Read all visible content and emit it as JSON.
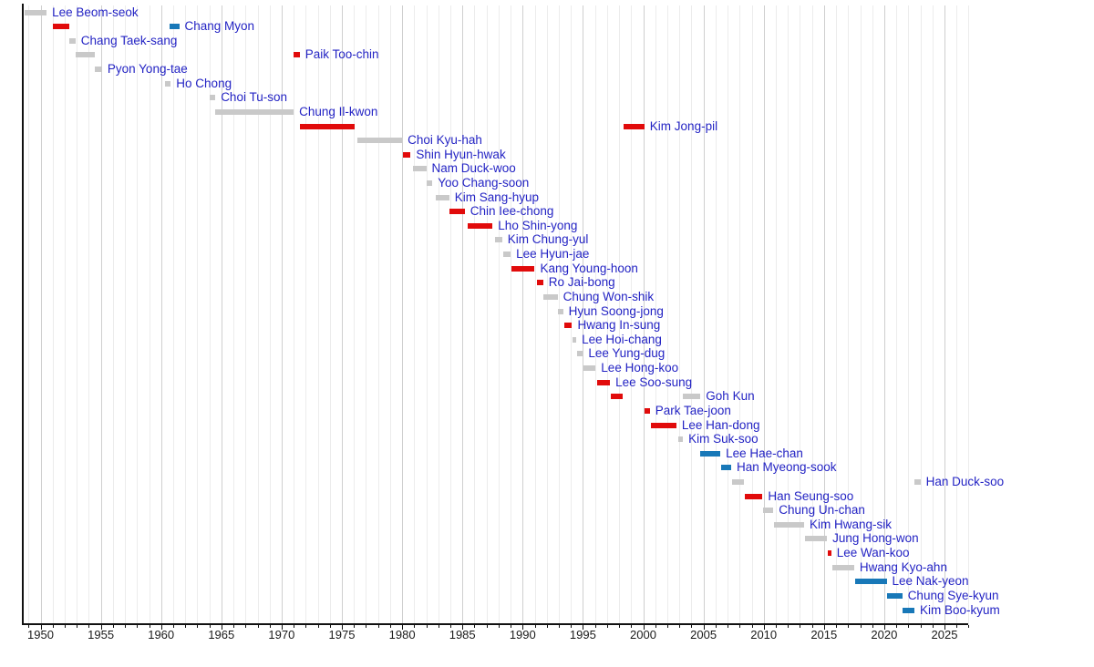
{
  "chart_data": {
    "type": "gantt-timeline",
    "title": "",
    "x_axis": {
      "axis_start_year": 1948.5,
      "axis_end_year": 2027,
      "major_tick_years": [
        1950,
        1955,
        1960,
        1965,
        1970,
        1975,
        1980,
        1985,
        1990,
        1995,
        2000,
        2005,
        2010,
        2015,
        2020,
        2025
      ],
      "major_tick_labels": [
        "1950",
        "1955",
        "1960",
        "1965",
        "1970",
        "1975",
        "1980",
        "1985",
        "1990",
        "1995",
        "2000",
        "2005",
        "2010",
        "2015",
        "2020",
        "2025"
      ],
      "minor_tick_interval_years": 1,
      "gridlines": "vertical, every year, 5-year lines darker"
    },
    "legend_position": "none",
    "colors": {
      "gray": "#c9c9c9",
      "red": "#e10b0b",
      "blue": "#1878b8",
      "label_text": "#2424c4",
      "axis": "#111111",
      "tick_label": "#1a1a1a",
      "gridline_minor": "#ececec",
      "gridline_major": "#cfcfcf"
    },
    "rows": [
      {
        "name": "Lee Beom-seok",
        "terms": [
          {
            "start": 1948.7,
            "end": 1950.5,
            "color": "gray"
          }
        ]
      },
      {
        "name": "Chang Myon",
        "terms": [
          {
            "start": 1951.0,
            "end": 1952.4,
            "color": "red"
          },
          {
            "start": 1960.7,
            "end": 1961.5,
            "color": "blue"
          }
        ]
      },
      {
        "name": "Chang Taek-sang",
        "terms": [
          {
            "start": 1952.4,
            "end": 1952.9,
            "color": "gray"
          }
        ]
      },
      {
        "name": "Paik Too-chin",
        "terms": [
          {
            "start": 1952.9,
            "end": 1954.5,
            "color": "gray"
          },
          {
            "start": 1971.0,
            "end": 1971.5,
            "color": "red"
          }
        ]
      },
      {
        "name": "Pyon Yong-tae",
        "terms": [
          {
            "start": 1954.5,
            "end": 1955.1,
            "color": "gray"
          }
        ]
      },
      {
        "name": "Ho Chong",
        "terms": [
          {
            "start": 1960.3,
            "end": 1960.8,
            "color": "gray"
          }
        ]
      },
      {
        "name": "Choi Tu-son",
        "terms": [
          {
            "start": 1964.0,
            "end": 1964.5,
            "color": "gray"
          }
        ]
      },
      {
        "name": "Chung Il-kwon",
        "terms": [
          {
            "start": 1964.5,
            "end": 1971.0,
            "color": "gray"
          }
        ]
      },
      {
        "name": "Kim Jong-pil",
        "terms": [
          {
            "start": 1971.5,
            "end": 1976.1,
            "color": "red"
          },
          {
            "start": 1998.4,
            "end": 2000.1,
            "color": "red"
          }
        ]
      },
      {
        "name": "Choi Kyu-hah",
        "terms": [
          {
            "start": 1976.3,
            "end": 1980.0,
            "color": "gray"
          }
        ]
      },
      {
        "name": "Shin Hyun-hwak",
        "terms": [
          {
            "start": 1980.1,
            "end": 1980.7,
            "color": "red"
          }
        ]
      },
      {
        "name": "Nam Duck-woo",
        "terms": [
          {
            "start": 1980.9,
            "end": 1982.0,
            "color": "gray"
          }
        ]
      },
      {
        "name": "Yoo Chang-soon",
        "terms": [
          {
            "start": 1982.0,
            "end": 1982.5,
            "color": "gray"
          }
        ]
      },
      {
        "name": "Kim Sang-hyup",
        "terms": [
          {
            "start": 1982.8,
            "end": 1983.9,
            "color": "gray"
          }
        ]
      },
      {
        "name": "Chin Iee-chong",
        "terms": [
          {
            "start": 1983.9,
            "end": 1985.2,
            "color": "red"
          }
        ]
      },
      {
        "name": "Lho Shin-yong",
        "terms": [
          {
            "start": 1985.4,
            "end": 1987.5,
            "color": "red"
          }
        ]
      },
      {
        "name": "Kim Chung-yul",
        "terms": [
          {
            "start": 1987.7,
            "end": 1988.3,
            "color": "gray"
          }
        ]
      },
      {
        "name": "Lee Hyun-jae",
        "terms": [
          {
            "start": 1988.4,
            "end": 1989.0,
            "color": "gray"
          }
        ]
      },
      {
        "name": "Kang Young-hoon",
        "terms": [
          {
            "start": 1989.1,
            "end": 1991.0,
            "color": "red"
          }
        ]
      },
      {
        "name": "Ro Jai-bong",
        "terms": [
          {
            "start": 1991.2,
            "end": 1991.7,
            "color": "red"
          }
        ]
      },
      {
        "name": "Chung Won-shik",
        "terms": [
          {
            "start": 1991.7,
            "end": 1992.9,
            "color": "gray"
          }
        ]
      },
      {
        "name": "Hyun Soong-jong",
        "terms": [
          {
            "start": 1992.95,
            "end": 1993.35,
            "color": "gray"
          }
        ]
      },
      {
        "name": "Hwang In-sung",
        "terms": [
          {
            "start": 1993.45,
            "end": 1994.1,
            "color": "red"
          }
        ]
      },
      {
        "name": "Lee Hoi-chang",
        "terms": [
          {
            "start": 1994.15,
            "end": 1994.45,
            "color": "gray"
          }
        ]
      },
      {
        "name": "Lee Yung-dug",
        "terms": [
          {
            "start": 1994.5,
            "end": 1995.0,
            "color": "gray"
          }
        ]
      },
      {
        "name": "Lee Hong-koo",
        "terms": [
          {
            "start": 1995.05,
            "end": 1996.05,
            "color": "gray"
          }
        ]
      },
      {
        "name": "Lee Soo-sung",
        "terms": [
          {
            "start": 1996.15,
            "end": 1997.25,
            "color": "red"
          }
        ]
      },
      {
        "name": "Goh Kun",
        "terms": [
          {
            "start": 1997.3,
            "end": 1998.3,
            "color": "red"
          },
          {
            "start": 2003.3,
            "end": 2004.75,
            "color": "gray"
          }
        ]
      },
      {
        "name": "Park Tae-joon",
        "terms": [
          {
            "start": 2000.1,
            "end": 2000.55,
            "color": "red"
          }
        ]
      },
      {
        "name": "Lee Han-dong",
        "terms": [
          {
            "start": 2000.65,
            "end": 2002.75,
            "color": "red"
          }
        ]
      },
      {
        "name": "Kim Suk-soo",
        "terms": [
          {
            "start": 2002.9,
            "end": 2003.3,
            "color": "gray"
          }
        ]
      },
      {
        "name": "Lee Hae-chan",
        "terms": [
          {
            "start": 2004.75,
            "end": 2006.4,
            "color": "blue"
          }
        ]
      },
      {
        "name": "Han Myeong-sook",
        "terms": [
          {
            "start": 2006.5,
            "end": 2007.3,
            "color": "blue"
          }
        ]
      },
      {
        "name": "Han Duck-soo",
        "terms": [
          {
            "start": 2007.4,
            "end": 2008.35,
            "color": "gray"
          },
          {
            "start": 2022.5,
            "end": 2023.0,
            "color": "gray"
          }
        ]
      },
      {
        "name": "Han Seung-soo",
        "terms": [
          {
            "start": 2008.4,
            "end": 2009.9,
            "color": "red"
          }
        ]
      },
      {
        "name": "Chung Un-chan",
        "terms": [
          {
            "start": 2009.95,
            "end": 2010.8,
            "color": "gray"
          }
        ]
      },
      {
        "name": "Kim Hwang-sik",
        "terms": [
          {
            "start": 2010.85,
            "end": 2013.35,
            "color": "gray"
          }
        ]
      },
      {
        "name": "Jung Hong-won",
        "terms": [
          {
            "start": 2013.4,
            "end": 2015.25,
            "color": "gray"
          }
        ]
      },
      {
        "name": "Lee Wan-koo",
        "terms": [
          {
            "start": 2015.35,
            "end": 2015.6,
            "color": "red"
          }
        ]
      },
      {
        "name": "Hwang Kyo-ahn",
        "terms": [
          {
            "start": 2015.7,
            "end": 2017.5,
            "color": "gray"
          }
        ]
      },
      {
        "name": "Lee Nak-yeon",
        "terms": [
          {
            "start": 2017.55,
            "end": 2020.2,
            "color": "blue"
          }
        ]
      },
      {
        "name": "Chung Sye-kyun",
        "terms": [
          {
            "start": 2020.25,
            "end": 2021.5,
            "color": "blue"
          }
        ]
      },
      {
        "name": "Kim Boo-kyum",
        "terms": [
          {
            "start": 2021.55,
            "end": 2022.5,
            "color": "blue"
          }
        ]
      }
    ]
  }
}
